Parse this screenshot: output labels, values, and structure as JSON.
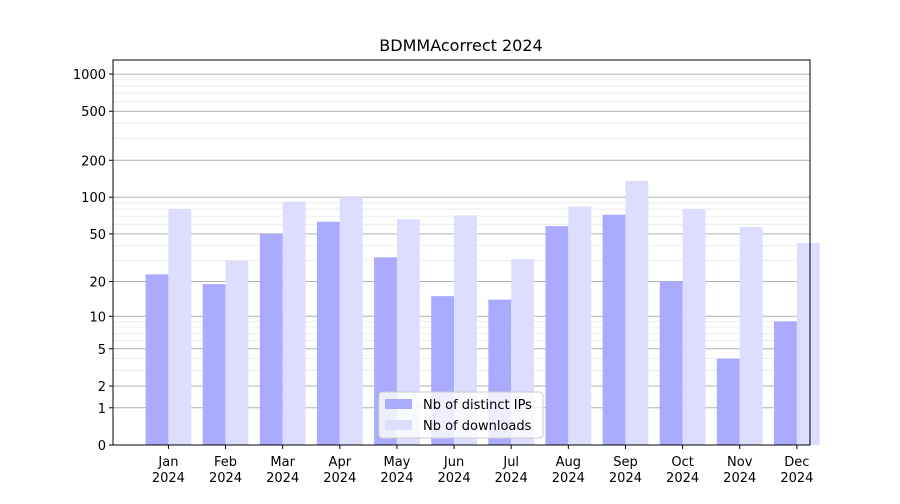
{
  "chart_data": {
    "type": "bar",
    "title": "BDMMAcorrect 2024",
    "xlabel": "",
    "ylabel": "",
    "y_scale": "symlog",
    "ylim": [
      0,
      1300
    ],
    "y_ticks": [
      0,
      1,
      2,
      5,
      10,
      20,
      50,
      100,
      200,
      500,
      1000
    ],
    "y_tick_labels": [
      "0",
      "1",
      "2",
      "5",
      "10",
      "20",
      "50",
      "100",
      "200",
      "500",
      "1000"
    ],
    "categories": [
      "Jan\n2024",
      "Feb\n2024",
      "Mar\n2024",
      "Apr\n2024",
      "May\n2024",
      "Jun\n2024",
      "Jul\n2024",
      "Aug\n2024",
      "Sep\n2024",
      "Oct\n2024",
      "Nov\n2024",
      "Dec\n2024"
    ],
    "series": [
      {
        "name": "Nb of distinct IPs",
        "color": "#aaaaff",
        "values": [
          23,
          19,
          50,
          63,
          32,
          15,
          14,
          58,
          72,
          20,
          4,
          9
        ]
      },
      {
        "name": "Nb of downloads",
        "color": "#ddddff",
        "values": [
          80,
          30,
          92,
          100,
          66,
          71,
          31,
          84,
          136,
          80,
          57,
          42
        ]
      }
    ],
    "grid": true,
    "legend_position": "bottom-center"
  }
}
